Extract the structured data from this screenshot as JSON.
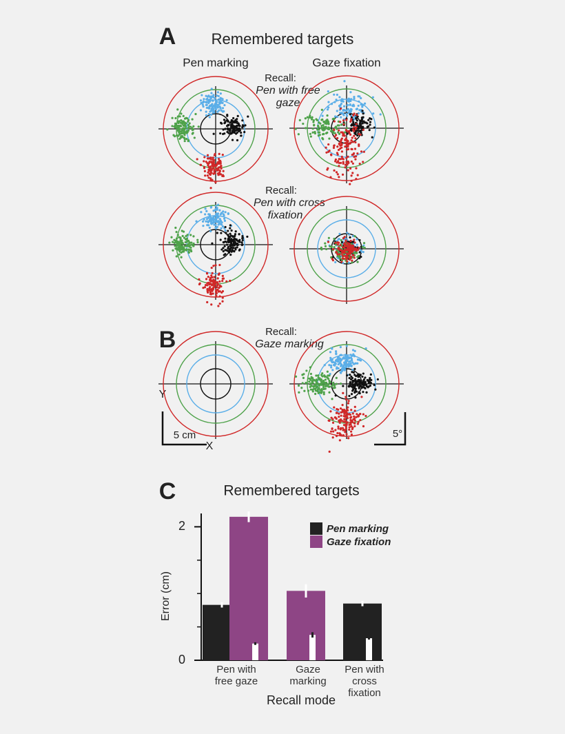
{
  "panel_a": {
    "label": "A",
    "title": "Remembered targets",
    "columns": [
      "Pen marking",
      "Gaze fixation"
    ],
    "recall_1": [
      "Recall:",
      "Pen with free",
      "gaze"
    ],
    "recall_2": [
      "Recall:",
      "Pen with cross",
      "fixation"
    ]
  },
  "panel_b": {
    "label": "B",
    "recall": [
      "Recall:",
      "Gaze marking"
    ],
    "y_axis": "Y",
    "x_axis": "X",
    "scale_distance": "5 cm",
    "scale_angle": "5°"
  },
  "panel_c_label": "C",
  "chart_data": {
    "type": "bar",
    "title": "Remembered targets",
    "categories": [
      "Pen with free gaze",
      "Gaze marking",
      "Pen with cross fixation"
    ],
    "x_label": "Recall mode",
    "y_label": "Error (cm)",
    "ylim": [
      0,
      2.2
    ],
    "yticks": [
      0,
      2
    ],
    "minor_yticks": [
      0.5,
      1,
      1.5
    ],
    "legend": "upper right",
    "series": [
      {
        "name": "Pen marking",
        "color": "#222222",
        "values": [
          0.83,
          null,
          0.85
        ],
        "errors": [
          0.04,
          null,
          0.04
        ]
      },
      {
        "name": "Gaze fixation",
        "color": "#8e4585",
        "values": [
          2.15,
          1.04,
          null
        ],
        "errors": [
          0.08,
          0.1,
          null
        ]
      },
      {
        "color": "#ffffff",
        "values": [
          0.25,
          0.38,
          0.33
        ],
        "errors": [
          0.02,
          0.04,
          0.02
        ]
      }
    ]
  }
}
